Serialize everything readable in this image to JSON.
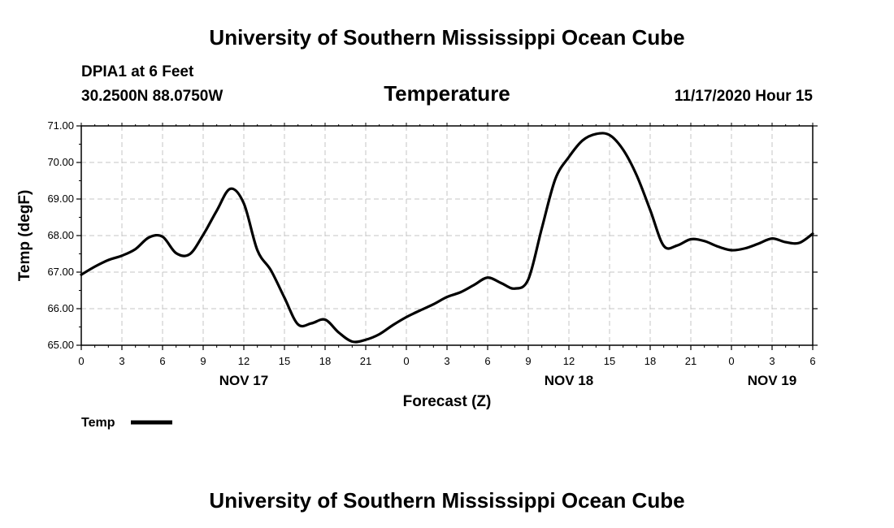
{
  "header": {
    "title_top": "University of Southern Mississippi Ocean Cube",
    "title_bottom": "University of Southern Mississippi Ocean Cube",
    "station_name": "DPIA1 at 6 Feet",
    "station_coords": "30.2500N 88.0750W",
    "timestamp": "11/17/2020 Hour 15"
  },
  "chart_data": {
    "type": "line",
    "title": "Temperature",
    "xlabel": "Forecast (Z)",
    "ylabel": "Temp (degF)",
    "xlim": [
      0,
      54
    ],
    "ylim": [
      65.0,
      71.0
    ],
    "grid": true,
    "grid_style": "dashed",
    "y_ticks": [
      65.0,
      66.0,
      67.0,
      68.0,
      69.0,
      70.0,
      71.0
    ],
    "y_tick_labels": [
      "65.00",
      "66.00",
      "67.00",
      "68.00",
      "69.00",
      "70.00",
      "71.00"
    ],
    "x_ticks": [
      0,
      3,
      6,
      9,
      12,
      15,
      18,
      21,
      24,
      27,
      30,
      33,
      36,
      39,
      42,
      45,
      48,
      51,
      54
    ],
    "x_tick_labels": [
      "0",
      "3",
      "6",
      "9",
      "12",
      "15",
      "18",
      "21",
      "0",
      "3",
      "6",
      "9",
      "12",
      "15",
      "18",
      "21",
      "0",
      "3",
      "6"
    ],
    "date_labels": [
      {
        "label": "NOV 17",
        "x": 12
      },
      {
        "label": "NOV 18",
        "x": 36
      },
      {
        "label": "NOV 19",
        "x": 51
      }
    ],
    "legend": {
      "position": "bottom-left",
      "entries": [
        "Temp"
      ]
    },
    "series": [
      {
        "name": "Temp",
        "color": "#000000",
        "x": [
          0,
          1,
          2,
          3,
          4,
          5,
          6,
          7,
          8,
          9,
          10,
          11,
          12,
          13,
          14,
          15,
          16,
          17,
          18,
          19,
          20,
          21,
          22,
          23,
          24,
          25,
          26,
          27,
          28,
          29,
          30,
          31,
          32,
          33,
          34,
          35,
          36,
          37,
          38,
          39,
          40,
          41,
          42,
          43,
          44,
          45,
          46,
          47,
          48,
          49,
          50,
          51,
          52,
          53,
          54
        ],
        "values": [
          66.93,
          67.15,
          67.33,
          67.45,
          67.63,
          67.95,
          67.97,
          67.52,
          67.49,
          68.02,
          68.68,
          69.28,
          68.88,
          67.6,
          67.05,
          66.3,
          65.57,
          65.6,
          65.7,
          65.35,
          65.1,
          65.15,
          65.3,
          65.55,
          65.77,
          65.95,
          66.12,
          66.32,
          66.45,
          66.65,
          66.85,
          66.7,
          66.55,
          66.8,
          68.2,
          69.55,
          70.15,
          70.6,
          70.78,
          70.75,
          70.35,
          69.65,
          68.7,
          67.72,
          67.73,
          67.9,
          67.85,
          67.7,
          67.6,
          67.65,
          67.78,
          67.92,
          67.82,
          67.8,
          68.05
        ]
      }
    ]
  }
}
